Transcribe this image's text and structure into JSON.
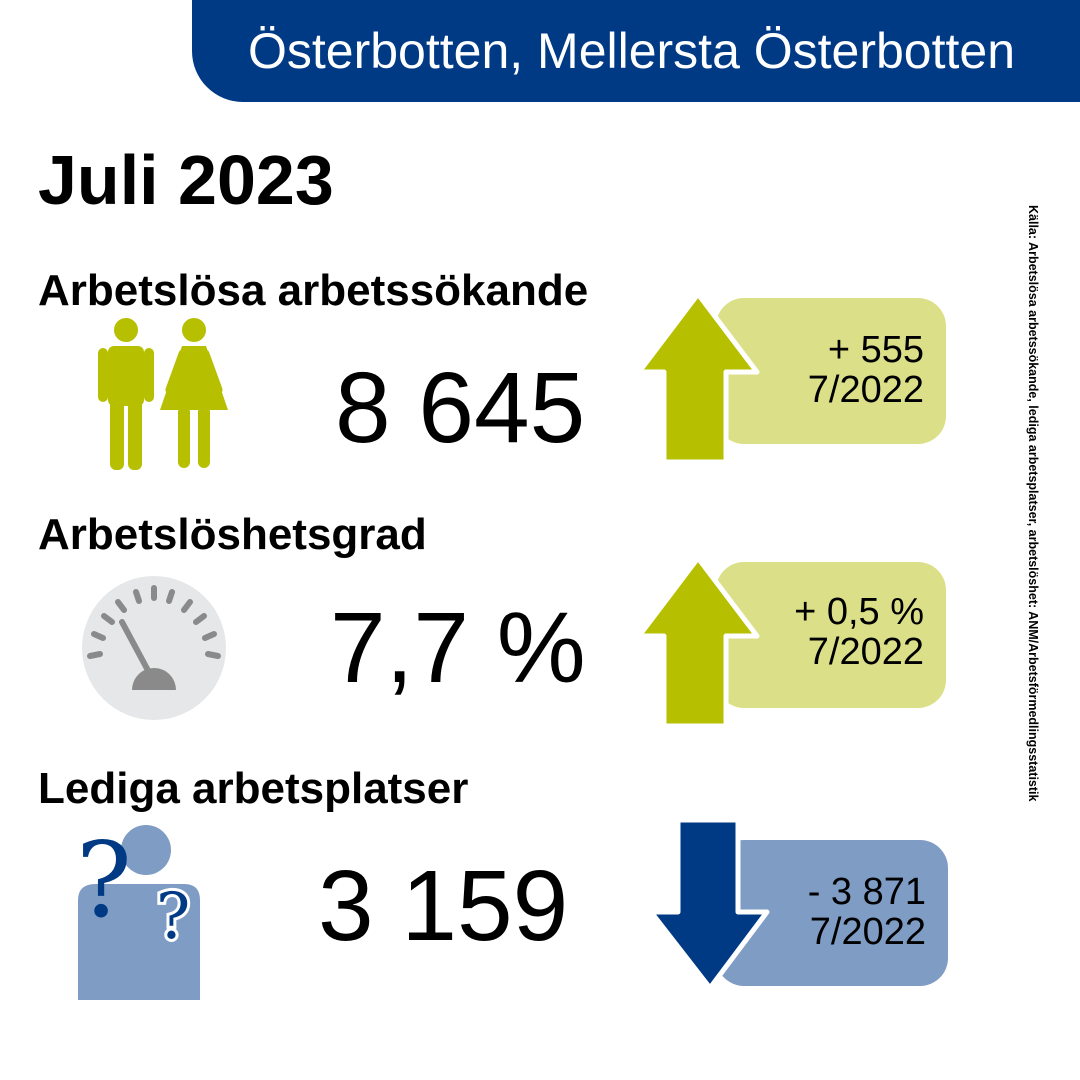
{
  "region": "Österbotten, Mellersta Österbotten",
  "period": "Juli 2023",
  "source": "Källa: Arbetslösa arbetssökande, lediga arbetsplatser, arbetslöshet: ANM/Arbetsförmedlingsstatistik",
  "colors": {
    "navy": "#003a85",
    "green": "#b6c000",
    "green_light": "#dbe088",
    "blue_light": "#7f9cc4",
    "gauge_bg": "#e6e7e8",
    "gauge_marks": "#8a8a8a"
  },
  "indicators": [
    {
      "heading": "Arbetslösa arbetssökande",
      "value": "8 645",
      "icon": "people-icon",
      "trend": "up",
      "change": "+ 555",
      "compare_period": "7/2022"
    },
    {
      "heading": "Arbetslöshetsgrad",
      "value": "7,7 %",
      "icon": "gauge-icon",
      "trend": "up",
      "change": "+ 0,5 %",
      "compare_period": "7/2022"
    },
    {
      "heading": "Lediga arbetsplatser",
      "value": "3 159",
      "icon": "question-person-icon",
      "trend": "down",
      "change": "- 3 871",
      "compare_period": "7/2022"
    }
  ]
}
